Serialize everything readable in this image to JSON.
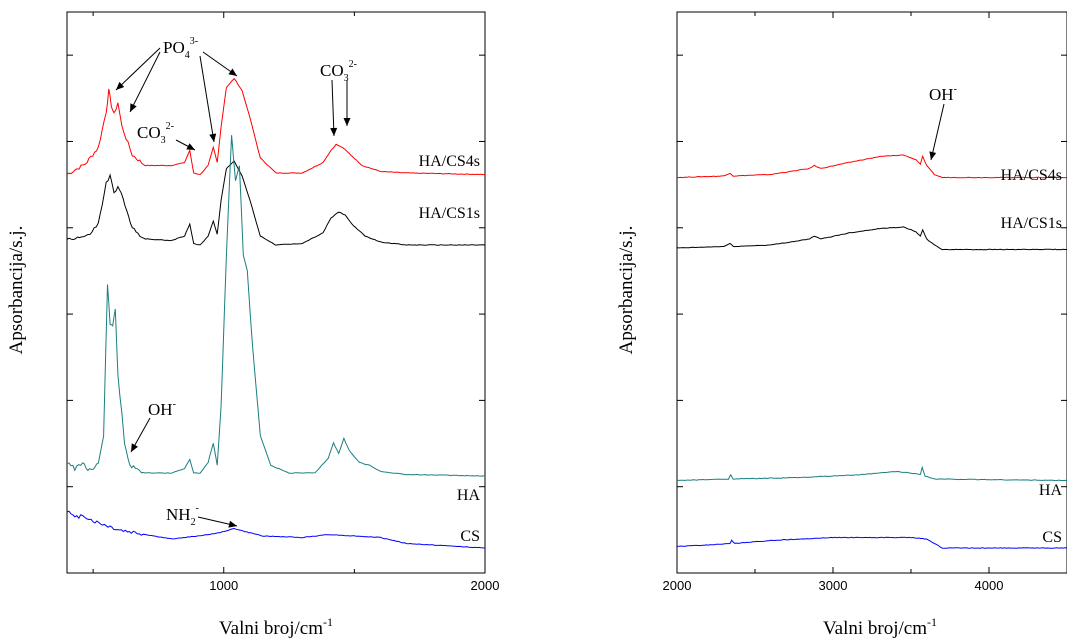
{
  "chart_data": [
    {
      "type": "line",
      "xlabel": "Valni broj/cm",
      "xlabel_sup": "-1",
      "ylabel": "Apsorbancija/s.j.",
      "xlim": [
        400,
        2000
      ],
      "x_ticks": [
        1000,
        2000
      ],
      "y_ticks_count": 6,
      "grid": false,
      "series": [
        {
          "name": "HA/CS4s",
          "color": "#ff0000",
          "offset": 2.45,
          "points": [
            [
              400,
              0.04
            ],
            [
              430,
              0.07
            ],
            [
              470,
              0.11
            ],
            [
              520,
              0.22
            ],
            [
              550,
              0.46
            ],
            [
              560,
              0.6
            ],
            [
              570,
              0.5
            ],
            [
              580,
              0.44
            ],
            [
              595,
              0.52
            ],
            [
              610,
              0.36
            ],
            [
              650,
              0.17
            ],
            [
              700,
              0.1
            ],
            [
              800,
              0.1
            ],
            [
              850,
              0.12
            ],
            [
              870,
              0.2
            ],
            [
              885,
              0.05
            ],
            [
              910,
              0.04
            ],
            [
              940,
              0.1
            ],
            [
              960,
              0.22
            ],
            [
              975,
              0.12
            ],
            [
              990,
              0.36
            ],
            [
              1010,
              0.62
            ],
            [
              1040,
              0.68
            ],
            [
              1070,
              0.6
            ],
            [
              1100,
              0.42
            ],
            [
              1140,
              0.15
            ],
            [
              1200,
              0.05
            ],
            [
              1300,
              0.05
            ],
            [
              1380,
              0.12
            ],
            [
              1410,
              0.2
            ],
            [
              1430,
              0.24
            ],
            [
              1455,
              0.22
            ],
            [
              1480,
              0.18
            ],
            [
              1530,
              0.1
            ],
            [
              1600,
              0.06
            ],
            [
              1700,
              0.05
            ],
            [
              2000,
              0.04
            ]
          ]
        },
        {
          "name": "HA/CS1s",
          "color": "#000000",
          "offset": 1.98,
          "points": [
            [
              400,
              0.08
            ],
            [
              440,
              0.09
            ],
            [
              480,
              0.1
            ],
            [
              520,
              0.18
            ],
            [
              550,
              0.45
            ],
            [
              565,
              0.5
            ],
            [
              580,
              0.38
            ],
            [
              595,
              0.44
            ],
            [
              615,
              0.34
            ],
            [
              650,
              0.15
            ],
            [
              700,
              0.08
            ],
            [
              800,
              0.07
            ],
            [
              850,
              0.1
            ],
            [
              870,
              0.18
            ],
            [
              885,
              0.05
            ],
            [
              910,
              0.04
            ],
            [
              940,
              0.1
            ],
            [
              960,
              0.2
            ],
            [
              975,
              0.11
            ],
            [
              990,
              0.34
            ],
            [
              1010,
              0.55
            ],
            [
              1040,
              0.6
            ],
            [
              1070,
              0.5
            ],
            [
              1100,
              0.34
            ],
            [
              1140,
              0.1
            ],
            [
              1200,
              0.04
            ],
            [
              1300,
              0.05
            ],
            [
              1380,
              0.12
            ],
            [
              1410,
              0.22
            ],
            [
              1440,
              0.26
            ],
            [
              1465,
              0.24
            ],
            [
              1490,
              0.18
            ],
            [
              1540,
              0.1
            ],
            [
              1600,
              0.06
            ],
            [
              1700,
              0.04
            ],
            [
              2000,
              0.04
            ]
          ]
        },
        {
          "name": "HA",
          "color": "#1a7f7f",
          "offset": 0.45,
          "points": [
            [
              400,
              0.12
            ],
            [
              430,
              0.08
            ],
            [
              460,
              0.12
            ],
            [
              480,
              0.06
            ],
            [
              500,
              0.08
            ],
            [
              520,
              0.12
            ],
            [
              540,
              0.3
            ],
            [
              555,
              1.3
            ],
            [
              565,
              1.05
            ],
            [
              575,
              1.02
            ],
            [
              585,
              1.15
            ],
            [
              595,
              0.7
            ],
            [
              610,
              0.45
            ],
            [
              620,
              0.25
            ],
            [
              640,
              0.1
            ],
            [
              700,
              0.05
            ],
            [
              800,
              0.05
            ],
            [
              850,
              0.08
            ],
            [
              870,
              0.14
            ],
            [
              885,
              0.05
            ],
            [
              910,
              0.05
            ],
            [
              940,
              0.12
            ],
            [
              960,
              0.25
            ],
            [
              975,
              0.1
            ],
            [
              990,
              0.5
            ],
            [
              1010,
              1.5
            ],
            [
              1030,
              2.3
            ],
            [
              1045,
              2.0
            ],
            [
              1060,
              2.1
            ],
            [
              1075,
              1.5
            ],
            [
              1090,
              1.4
            ],
            [
              1110,
              0.9
            ],
            [
              1140,
              0.3
            ],
            [
              1180,
              0.1
            ],
            [
              1250,
              0.05
            ],
            [
              1350,
              0.05
            ],
            [
              1400,
              0.15
            ],
            [
              1420,
              0.25
            ],
            [
              1440,
              0.18
            ],
            [
              1460,
              0.28
            ],
            [
              1480,
              0.2
            ],
            [
              1520,
              0.12
            ],
            [
              1560,
              0.1
            ],
            [
              1600,
              0.06
            ],
            [
              1700,
              0.04
            ],
            [
              2000,
              0.03
            ]
          ]
        },
        {
          "name": "CS",
          "color": "#0000ff",
          "offset": 0.0,
          "points": [
            [
              400,
              0.25
            ],
            [
              430,
              0.2
            ],
            [
              460,
              0.22
            ],
            [
              500,
              0.18
            ],
            [
              550,
              0.15
            ],
            [
              600,
              0.12
            ],
            [
              700,
              0.09
            ],
            [
              800,
              0.06
            ],
            [
              900,
              0.08
            ],
            [
              980,
              0.1
            ],
            [
              1040,
              0.13
            ],
            [
              1080,
              0.11
            ],
            [
              1150,
              0.08
            ],
            [
              1300,
              0.07
            ],
            [
              1400,
              0.09
            ],
            [
              1500,
              0.08
            ],
            [
              1600,
              0.07
            ],
            [
              1700,
              0.03
            ],
            [
              2000,
              0.0
            ]
          ]
        }
      ],
      "annotations": [
        {
          "label": "PO",
          "sub": "4",
          "sup": "3-"
        },
        {
          "label": "CO",
          "sub": "3",
          "sup": "2-"
        },
        {
          "label": "CO",
          "sub": "3",
          "sup": "2-"
        },
        {
          "label": "OH",
          "sub": "",
          "sup": "-"
        },
        {
          "label": "NH",
          "sub": "2",
          "sup": "-"
        }
      ]
    },
    {
      "type": "line",
      "xlabel": "Valni broj/cm",
      "xlabel_sup": "-1",
      "ylabel": "Apsorbancija/s.j.",
      "xlim": [
        2000,
        4500
      ],
      "x_ticks": [
        2000,
        3000,
        4000
      ],
      "y_ticks_count": 6,
      "grid": false,
      "series": [
        {
          "name": "HA/CS4s",
          "color": "#ff0000",
          "offset": 2.45,
          "points": [
            [
              2000,
              0.02
            ],
            [
              2300,
              0.03
            ],
            [
              2340,
              0.05
            ],
            [
              2360,
              0.03
            ],
            [
              2600,
              0.04
            ],
            [
              2850,
              0.08
            ],
            [
              2880,
              0.1
            ],
            [
              2920,
              0.08
            ],
            [
              3100,
              0.12
            ],
            [
              3300,
              0.16
            ],
            [
              3450,
              0.17
            ],
            [
              3530,
              0.14
            ],
            [
              3560,
              0.11
            ],
            [
              3575,
              0.16
            ],
            [
              3600,
              0.1
            ],
            [
              3650,
              0.04
            ],
            [
              3700,
              0.02
            ],
            [
              4500,
              0.02
            ]
          ]
        },
        {
          "name": "HA/CS1s",
          "color": "#000000",
          "offset": 1.98,
          "points": [
            [
              2000,
              0.02
            ],
            [
              2300,
              0.03
            ],
            [
              2340,
              0.05
            ],
            [
              2360,
              0.03
            ],
            [
              2600,
              0.04
            ],
            [
              2850,
              0.08
            ],
            [
              2880,
              0.1
            ],
            [
              2920,
              0.08
            ],
            [
              3100,
              0.12
            ],
            [
              3300,
              0.15
            ],
            [
              3450,
              0.16
            ],
            [
              3530,
              0.13
            ],
            [
              3560,
              0.1
            ],
            [
              3575,
              0.14
            ],
            [
              3600,
              0.08
            ],
            [
              3650,
              0.04
            ],
            [
              3700,
              0.01
            ],
            [
              4500,
              0.01
            ]
          ]
        },
        {
          "name": "HA",
          "color": "#1a7f7f",
          "offset": 0.45,
          "points": [
            [
              2000,
              0.0
            ],
            [
              2330,
              0.01
            ],
            [
              2345,
              0.04
            ],
            [
              2360,
              0.01
            ],
            [
              2800,
              0.02
            ],
            [
              3200,
              0.04
            ],
            [
              3400,
              0.06
            ],
            [
              3500,
              0.05
            ],
            [
              3560,
              0.04
            ],
            [
              3572,
              0.09
            ],
            [
              3590,
              0.03
            ],
            [
              3650,
              0.01
            ],
            [
              4500,
              0.0
            ]
          ]
        },
        {
          "name": "CS",
          "color": "#0000ff",
          "offset": 0.0,
          "points": [
            [
              2000,
              0.01
            ],
            [
              2200,
              0.02
            ],
            [
              2340,
              0.03
            ],
            [
              2350,
              0.05
            ],
            [
              2370,
              0.03
            ],
            [
              2600,
              0.05
            ],
            [
              3000,
              0.07
            ],
            [
              3300,
              0.07
            ],
            [
              3500,
              0.07
            ],
            [
              3600,
              0.06
            ],
            [
              3650,
              0.03
            ],
            [
              3700,
              0.0
            ],
            [
              4500,
              0.0
            ]
          ]
        }
      ],
      "annotations": [
        {
          "label": "OH",
          "sub": "",
          "sup": "-"
        }
      ]
    }
  ]
}
